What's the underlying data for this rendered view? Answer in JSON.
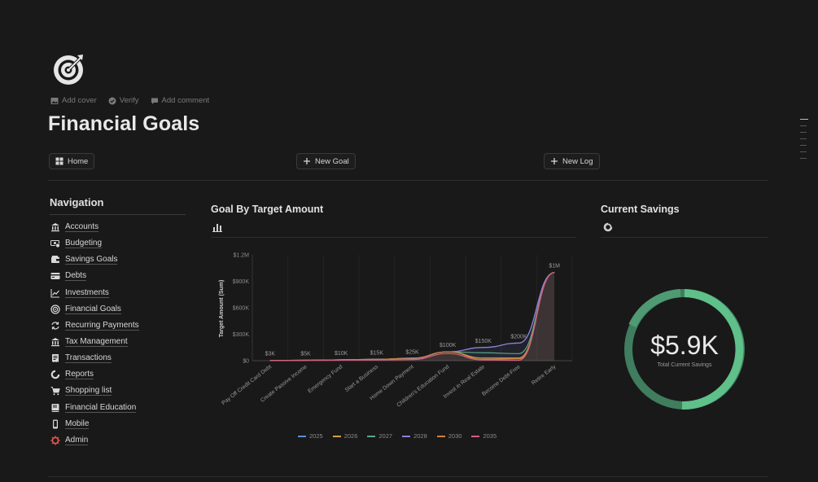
{
  "page": {
    "title": "Financial Goals",
    "meta": {
      "add_cover": "Add cover",
      "verify": "Verify",
      "add_comment": "Add comment"
    }
  },
  "buttons": {
    "home": "Home",
    "new_goal": "New Goal",
    "new_log": "New Log"
  },
  "navigation": {
    "title": "Navigation",
    "items": [
      {
        "label": "Accounts",
        "icon": "bank-icon"
      },
      {
        "label": "Budgeting",
        "icon": "money-icon"
      },
      {
        "label": "Savings Goals",
        "icon": "wallet-icon"
      },
      {
        "label": "Debts",
        "icon": "card-icon"
      },
      {
        "label": "Investments",
        "icon": "line-chart-icon"
      },
      {
        "label": "Financial Goals",
        "icon": "target-icon"
      },
      {
        "label": "Recurring Payments",
        "icon": "repeat-icon"
      },
      {
        "label": "Tax Management",
        "icon": "bank-icon"
      },
      {
        "label": "Transactions",
        "icon": "receipt-icon"
      },
      {
        "label": "Reports",
        "icon": "pie-icon"
      },
      {
        "label": "Shopping list",
        "icon": "cart-icon"
      },
      {
        "label": "Financial Education",
        "icon": "book-icon"
      },
      {
        "label": "Mobile",
        "icon": "phone-icon"
      },
      {
        "label": "Admin",
        "icon": "gear-icon"
      }
    ]
  },
  "goal_chart": {
    "heading": "Goal By Target Amount",
    "view_icon": "bar-chart-icon"
  },
  "savings": {
    "heading": "Current Savings",
    "view_icon": "donut-icon",
    "value": "$5.9K",
    "caption": "Total Current Savings",
    "colors": {
      "main": "#5fc08a",
      "dark": "#3f8060",
      "track": "#2a2a2a"
    }
  },
  "chart_data": {
    "type": "area",
    "ylabel": "Target Amount (Sum)",
    "y_ticks": [
      "$0",
      "$300K",
      "$600K",
      "$900K",
      "$1.2M"
    ],
    "ylim": [
      0,
      1200000
    ],
    "categories": [
      "Pay Off Credit Card Debt",
      "Create Passive Income",
      "Emergency Fund",
      "Start a Business",
      "Home Down Payment",
      "Children's Education Fund",
      "Invest in Real Estate",
      "Become Debt-Free",
      "Retire Early"
    ],
    "values": [
      3000,
      5000,
      10000,
      15000,
      25000,
      100000,
      150000,
      200000,
      1000000
    ],
    "data_labels": [
      "$3K",
      "$5K",
      "$10K",
      "$15K",
      "$25K",
      "$100K",
      "$150K",
      "$200K",
      "$1M"
    ],
    "series": [
      {
        "name": "2025",
        "color": "#5b8dd6"
      },
      {
        "name": "2026",
        "color": "#d4a04a"
      },
      {
        "name": "2027",
        "color": "#5aa58a"
      },
      {
        "name": "2028",
        "color": "#8e7fd6"
      },
      {
        "name": "2030",
        "color": "#d1803f"
      },
      {
        "name": "2035",
        "color": "#d0607e"
      }
    ],
    "grid": true,
    "legend": "bottom-center"
  }
}
